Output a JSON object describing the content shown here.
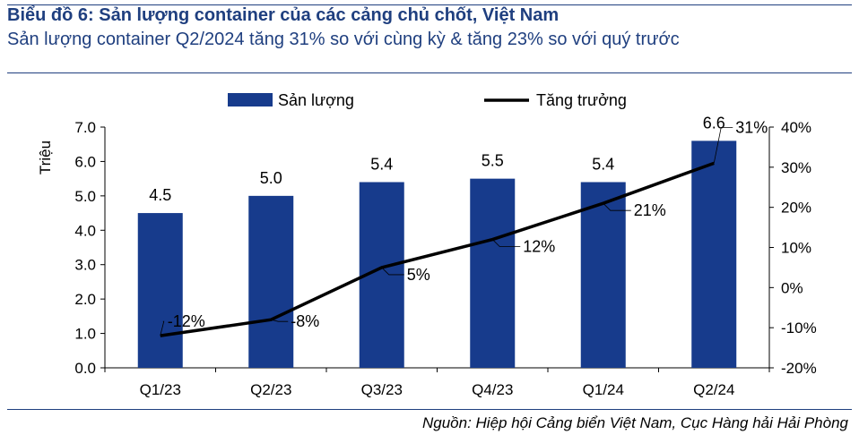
{
  "header": {
    "title": "Biểu đồ 6: Sản lượng container của các cảng chủ chốt, Việt Nam",
    "subtitle": "Sản lượng container Q2/2024 tăng 31% so với cùng kỳ & tăng 23% so với quý trước"
  },
  "footer": {
    "source": "Nguồn: Hiệp hội Cảng biển Việt Nam, Cục Hàng hải Hải Phòng"
  },
  "colors": {
    "title": "#1f3f7f",
    "bar": "#173b8c",
    "line": "#000000"
  },
  "chart_data": {
    "type": "bar",
    "categories": [
      "Q1/23",
      "Q2/23",
      "Q3/23",
      "Q4/23",
      "Q1/24",
      "Q2/24"
    ],
    "series": [
      {
        "name": "Sản lượng",
        "type": "bar",
        "axis": "left",
        "values": [
          4.5,
          5.0,
          5.4,
          5.5,
          5.4,
          6.6
        ],
        "labels": [
          "4.5",
          "5.0",
          "5.4",
          "5.5",
          "5.4",
          "6.6"
        ]
      },
      {
        "name": "Tăng trưởng",
        "type": "line",
        "axis": "right",
        "values": [
          -12,
          -8,
          5,
          12,
          21,
          31
        ],
        "labels": [
          "-12%",
          "-8%",
          "5%",
          "12%",
          "21%",
          "31%"
        ]
      }
    ],
    "ylabel": "Triệu",
    "ylim": [
      0,
      7
    ],
    "y_ticks": [
      "0.0",
      "1.0",
      "2.0",
      "3.0",
      "4.0",
      "5.0",
      "6.0",
      "7.0"
    ],
    "y2lim": [
      -20,
      40
    ],
    "y2_ticks": [
      "-20%",
      "-10%",
      "0%",
      "10%",
      "20%",
      "30%",
      "40%"
    ],
    "legend_position": "top",
    "grid": false
  }
}
